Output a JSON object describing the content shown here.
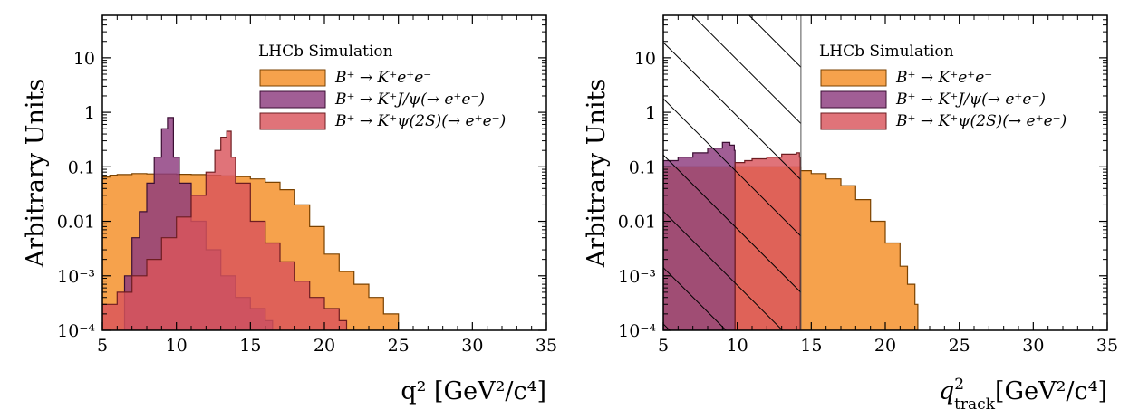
{
  "chart_data": [
    {
      "type": "histogram",
      "panel": "left",
      "title": "",
      "xlabel": "q² [GeV²/c⁴]",
      "ylabel": "Arbitrary Units",
      "xlim": [
        5,
        35
      ],
      "ylim": [
        0.0001,
        60
      ],
      "yscale": "log",
      "xticks": [
        5,
        10,
        15,
        20,
        25,
        30,
        35
      ],
      "xtick_labels": [
        "5",
        "10",
        "15",
        "20",
        "25",
        "30",
        "35"
      ],
      "yticks": [
        0.0001,
        0.001,
        0.01,
        0.1,
        1,
        10
      ],
      "ytick_labels": [
        "10⁻⁴",
        "10⁻³",
        "0.01",
        "0.1",
        "1",
        "10"
      ],
      "legend_title": "LHCb Simulation",
      "legend_position": "top-right",
      "series": [
        {
          "name": "B⁺ → K⁺e⁺e⁻",
          "color": "#f59a3d",
          "points": [
            [
              5.0,
              0.065
            ],
            [
              5.5,
              0.07
            ],
            [
              6,
              0.072
            ],
            [
              7,
              0.075
            ],
            [
              8,
              0.074
            ],
            [
              9,
              0.074
            ],
            [
              10,
              0.073
            ],
            [
              11,
              0.072
            ],
            [
              12,
              0.07
            ],
            [
              13,
              0.068
            ],
            [
              14,
              0.066
            ],
            [
              15,
              0.06
            ],
            [
              16,
              0.052
            ],
            [
              17,
              0.038
            ],
            [
              18,
              0.02
            ],
            [
              19,
              0.008
            ],
            [
              20,
              0.0025
            ],
            [
              21,
              0.0012
            ],
            [
              22,
              0.0007
            ],
            [
              23,
              0.0004
            ],
            [
              24,
              0.0002
            ],
            [
              25,
              0.0001
            ]
          ]
        },
        {
          "name": "B⁺ → K⁺J/ψ(→ e⁺e⁻)",
          "color": "#8c3b7e",
          "points": [
            [
              6.0,
              0.0001
            ],
            [
              6.5,
              0.001
            ],
            [
              7,
              0.005
            ],
            [
              7.5,
              0.015
            ],
            [
              8,
              0.05
            ],
            [
              8.5,
              0.15
            ],
            [
              9.0,
              0.5
            ],
            [
              9.4,
              0.8
            ],
            [
              9.8,
              0.15
            ],
            [
              10.2,
              0.05
            ],
            [
              11,
              0.01
            ],
            [
              12,
              0.003
            ],
            [
              13,
              0.001
            ],
            [
              14,
              0.0004
            ],
            [
              15,
              0.00025
            ],
            [
              16,
              0.00015
            ],
            [
              16.5,
              0.0001
            ]
          ]
        },
        {
          "name": "B⁺ → K⁺ψ(2S)(→ e⁺e⁻)",
          "color": "#d9545c",
          "points": [
            [
              5.0,
              0.0003
            ],
            [
              6,
              0.0005
            ],
            [
              7,
              0.001
            ],
            [
              8,
              0.002
            ],
            [
              9,
              0.005
            ],
            [
              10,
              0.012
            ],
            [
              11,
              0.03
            ],
            [
              12,
              0.08
            ],
            [
              12.6,
              0.2
            ],
            [
              13.0,
              0.35
            ],
            [
              13.4,
              0.45
            ],
            [
              13.7,
              0.15
            ],
            [
              14,
              0.05
            ],
            [
              15,
              0.01
            ],
            [
              16,
              0.004
            ],
            [
              17,
              0.0018
            ],
            [
              18,
              0.0008
            ],
            [
              19,
              0.0004
            ],
            [
              20,
              0.00025
            ],
            [
              21,
              0.00015
            ],
            [
              21.5,
              0.0001
            ]
          ]
        }
      ]
    },
    {
      "type": "histogram",
      "panel": "right",
      "title": "",
      "xlabel_main": "q",
      "xlabel_sup": "2",
      "xlabel_sub": "track",
      "xlabel_units": "[GeV²/c⁴]",
      "ylabel": "Arbitrary Units",
      "xlim": [
        5,
        35
      ],
      "ylim": [
        0.0001,
        60
      ],
      "yscale": "log",
      "xticks": [
        5,
        10,
        15,
        20,
        25,
        30,
        35
      ],
      "xtick_labels": [
        "5",
        "10",
        "15",
        "20",
        "25",
        "30",
        "35"
      ],
      "yticks": [
        0.0001,
        0.001,
        0.01,
        0.1,
        1,
        10
      ],
      "ytick_labels": [
        "10⁻⁴",
        "10⁻³",
        "0.01",
        "0.1",
        "1",
        "10"
      ],
      "legend_title": "LHCb Simulation",
      "legend_position": "top-right",
      "hatched_region_x": [
        5,
        14.3
      ],
      "series": [
        {
          "name": "B⁺ → K⁺e⁺e⁻",
          "color": "#f59a3d",
          "points": [
            [
              5.0,
              0.1
            ],
            [
              6,
              0.1
            ],
            [
              7,
              0.1
            ],
            [
              8,
              0.1
            ],
            [
              9,
              0.1
            ],
            [
              10,
              0.1
            ],
            [
              11,
              0.1
            ],
            [
              12,
              0.1
            ],
            [
              13,
              0.1
            ],
            [
              14.3,
              0.085
            ],
            [
              15,
              0.075
            ],
            [
              16,
              0.06
            ],
            [
              17,
              0.045
            ],
            [
              18,
              0.025
            ],
            [
              19,
              0.01
            ],
            [
              20,
              0.004
            ],
            [
              21,
              0.0015
            ],
            [
              21.5,
              0.0007
            ],
            [
              22,
              0.0003
            ],
            [
              22.2,
              0.0001
            ]
          ]
        },
        {
          "name": "B⁺ → K⁺J/ψ(→ e⁺e⁻)",
          "color": "#8c3b7e",
          "points": [
            [
              5.0,
              0.13
            ],
            [
              6,
              0.15
            ],
            [
              7,
              0.18
            ],
            [
              8,
              0.22
            ],
            [
              9,
              0.28
            ],
            [
              9.5,
              0.25
            ],
            [
              9.8,
              0.2
            ],
            [
              9.85,
              0.0001
            ]
          ]
        },
        {
          "name": "B⁺ → K⁺ψ(2S)(→ e⁺e⁻)",
          "color": "#d9545c",
          "points": [
            [
              9.85,
              0.12
            ],
            [
              10.5,
              0.13
            ],
            [
              11,
              0.14
            ],
            [
              12,
              0.15
            ],
            [
              13,
              0.17
            ],
            [
              14.0,
              0.18
            ],
            [
              14.2,
              0.15
            ],
            [
              14.25,
              0.0001
            ]
          ]
        }
      ]
    }
  ]
}
